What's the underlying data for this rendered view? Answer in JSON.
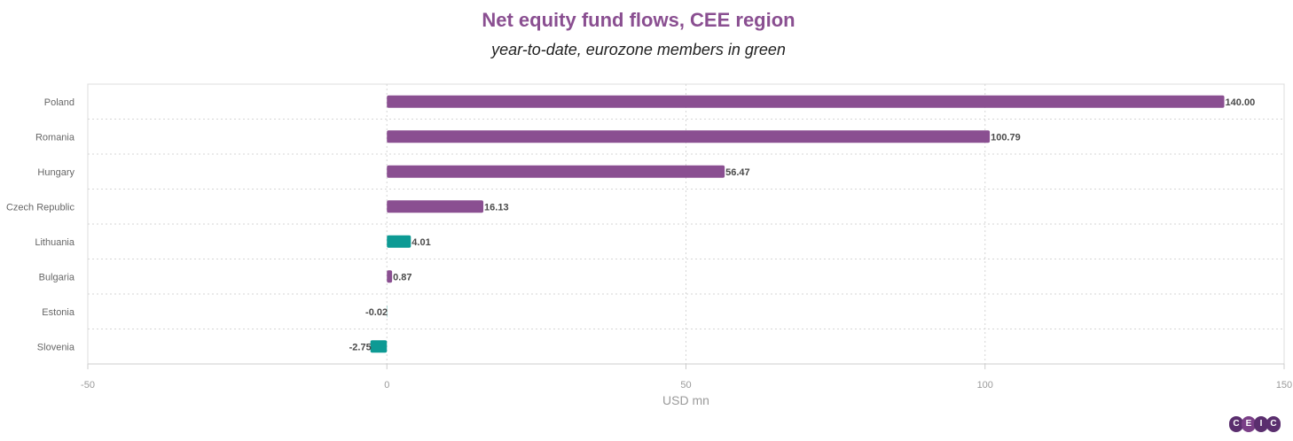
{
  "chart_data": {
    "type": "bar",
    "orientation": "horizontal",
    "title": "Net equity fund flows, CEE region",
    "subtitle": "year-to-date, eurozone members in green",
    "xlabel": "USD mn",
    "ylabel": "",
    "xlim": [
      -50,
      150
    ],
    "xticks": [
      -50,
      0,
      50,
      100,
      150
    ],
    "grid": true,
    "categories": [
      "Poland",
      "Romania",
      "Hungary",
      "Czech Republic",
      "Lithuania",
      "Bulgaria",
      "Estonia",
      "Slovenia"
    ],
    "values": [
      140.0,
      100.79,
      56.47,
      16.13,
      4.01,
      0.87,
      -0.02,
      -2.75
    ],
    "labels": [
      "140.00",
      "100.79",
      "56.47",
      "16.13",
      "4.01",
      "0.87",
      "-0.02",
      "-2.75"
    ],
    "eurozone": [
      false,
      false,
      false,
      false,
      true,
      false,
      true,
      true
    ],
    "colors": {
      "non_eurozone": "#8a4f91",
      "eurozone": "#0d9a94"
    }
  },
  "logo": {
    "letters": [
      "C",
      "E",
      "I",
      "C"
    ]
  }
}
